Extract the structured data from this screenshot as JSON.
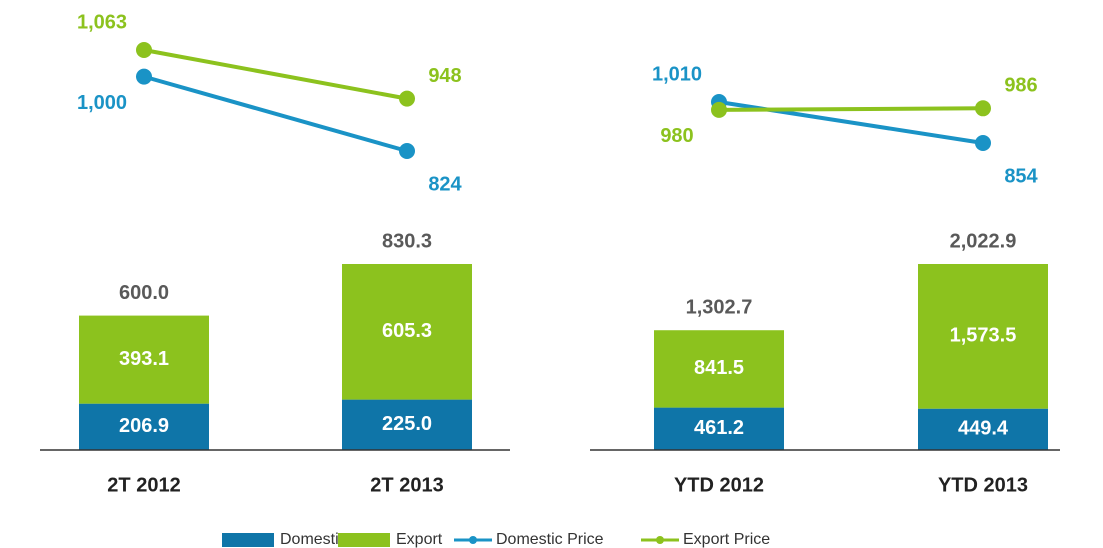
{
  "chart_data": [
    {
      "type": "bar-line",
      "categories": [
        "2T 2012",
        "2T 2013"
      ],
      "series": [
        {
          "name": "Domestic",
          "color": "#0f75a8",
          "values": [
            206.9,
            225
          ],
          "value_labels": [
            "206.9",
            "225.0"
          ]
        },
        {
          "name": "Export",
          "color": "#8cc21e",
          "values": [
            393.1,
            605.3
          ]
        },
        {
          "name": "Domestic Price",
          "color": "#1a93c6",
          "type": "line",
          "values": [
            1000,
            824
          ],
          "value_labels": [
            "1,000",
            "824"
          ]
        },
        {
          "name": "Export Price",
          "color": "#8cc21e",
          "type": "line",
          "values": [
            1063,
            948
          ],
          "value_labels": [
            "1,063",
            "948"
          ]
        }
      ],
      "totals": {
        "values": [
          600,
          830.3
        ],
        "value_labels": [
          "600.0",
          "830.3"
        ]
      }
    },
    {
      "type": "bar-line",
      "categories": [
        "YTD 2012",
        "YTD 2013"
      ],
      "series": [
        {
          "name": "Domestic",
          "color": "#0f75a8",
          "values": [
            461.2,
            449.4
          ]
        },
        {
          "name": "Export",
          "color": "#8cc21e",
          "values": [
            841.5,
            1573.5
          ],
          "value_labels": [
            "841.5",
            "1,573.5"
          ]
        },
        {
          "name": "Domestic Price",
          "color": "#1a93c6",
          "type": "line",
          "values": [
            1010,
            854
          ],
          "value_labels": [
            "1,010",
            "854"
          ]
        },
        {
          "name": "Export Price",
          "color": "#8cc21e",
          "type": "line",
          "values": [
            980,
            986
          ]
        }
      ],
      "totals": {
        "values": [
          1302.7,
          2022.9
        ],
        "value_labels": [
          "1,302.7",
          "2,022.9"
        ]
      }
    }
  ]
}
